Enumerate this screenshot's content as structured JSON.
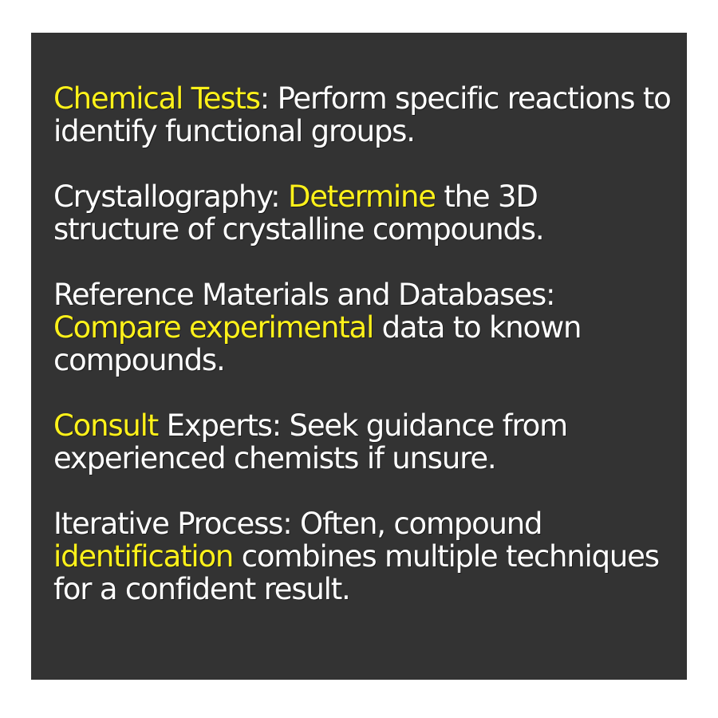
{
  "colors": {
    "background": "#333333",
    "text": "#ffffff",
    "highlight": "#fff21a"
  },
  "items": [
    {
      "hl": "Chemical Tests",
      "a": ": Perform specific reactions to identify functional groups."
    },
    {
      "pre": "Crystallography: ",
      "hl": "Determine",
      "post": " the 3D structure of crystalline compounds."
    },
    {
      "pre": "Reference Materials and Databases: ",
      "hl": "Compare experimental",
      "post": " data to known compounds."
    },
    {
      "hl": "Consult",
      "a": " Experts: Seek guidance from experienced chemists if unsure."
    },
    {
      "pre": "Iterative Process: Often, compound ",
      "hl": "identification",
      "post": " combines multiple techniques for a confident result."
    }
  ]
}
